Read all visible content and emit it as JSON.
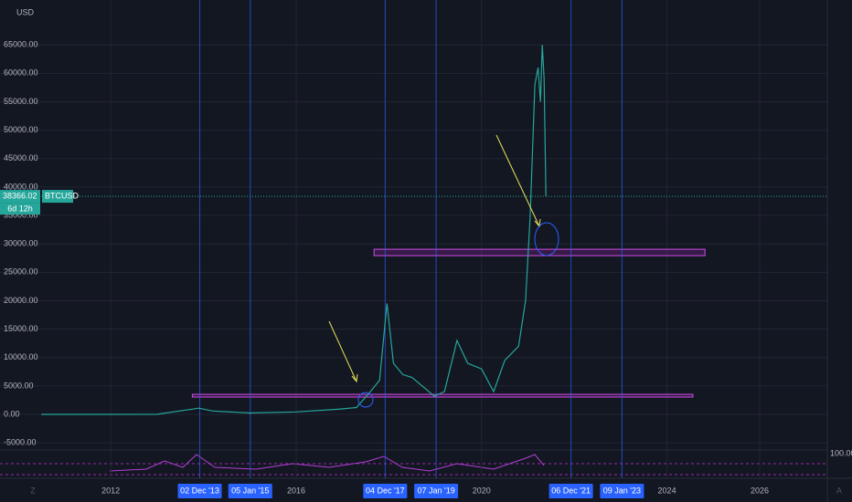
{
  "chart_data": {
    "type": "line",
    "axis_unit": "USD",
    "symbol": "BTCUSD",
    "last_price_label": "38366.02",
    "last_price": 38366.02,
    "countdown": "6d 12h",
    "rsi_top_label": "100.00",
    "color": "#26a69a",
    "x": [
      2010.5,
      2012.0,
      2013.0,
      2013.9,
      2014.2,
      2015.0,
      2016.0,
      2016.9,
      2017.3,
      2017.6,
      2017.8,
      2017.96,
      2018.1,
      2018.3,
      2018.5,
      2018.98,
      2019.2,
      2019.47,
      2019.7,
      2020.0,
      2020.26,
      2020.5,
      2020.8,
      2020.95,
      2021.05,
      2021.15,
      2021.22,
      2021.27,
      2021.31,
      2021.35,
      2021.39
    ],
    "values": [
      0,
      5,
      13,
      1100,
      600,
      250,
      430,
      900,
      1200,
      4000,
      6000,
      19500,
      9000,
      7000,
      6500,
      3200,
      4000,
      13000,
      9000,
      8000,
      4000,
      9500,
      12000,
      20000,
      35000,
      58000,
      61000,
      55000,
      65000,
      59000,
      38366.02
    ],
    "xlim": [
      2009.61,
      2027.46
    ],
    "xticks": [
      2012,
      2016,
      2020,
      2024,
      2026
    ],
    "ylim": [
      -6100,
      71300
    ],
    "yticks": [
      {
        "value": -5000,
        "label": "-5000.00"
      },
      {
        "value": 0,
        "label": "0.00"
      },
      {
        "value": 5000,
        "label": "5000.00"
      },
      {
        "value": 10000,
        "label": "10000.00"
      },
      {
        "value": 15000,
        "label": "15000.00"
      },
      {
        "value": 20000,
        "label": "20000.00"
      },
      {
        "value": 25000,
        "label": "25000.00"
      },
      {
        "value": 30000,
        "label": "30000.00"
      },
      {
        "value": 35000,
        "label": "35000.00"
      },
      {
        "value": 40000,
        "label": "40000.00"
      },
      {
        "value": 45000,
        "label": "45000.00"
      },
      {
        "value": 50000,
        "label": "50000.00"
      },
      {
        "value": 55000,
        "label": "55000.00"
      },
      {
        "value": 60000,
        "label": "60000.00"
      },
      {
        "value": 65000,
        "label": "65000.00"
      }
    ],
    "grid": true,
    "vlines": [
      {
        "x": 2013.92,
        "label": "02 Dec '13"
      },
      {
        "x": 2015.01,
        "label": "05 Jan '15"
      },
      {
        "x": 2017.92,
        "label": "04 Dec '17"
      },
      {
        "x": 2019.02,
        "label": "07 Jan '19"
      },
      {
        "x": 2021.93,
        "label": "06 Dec '21"
      },
      {
        "x": 2023.03,
        "label": "09 Jan '23"
      }
    ],
    "zones": [
      {
        "x0": 2017.68,
        "x1": 2024.82,
        "y0": 27930,
        "y1": 29050
      },
      {
        "x0": 2013.76,
        "x1": 2024.56,
        "y0": 3050,
        "y1": 3530
      }
    ]
  }
}
